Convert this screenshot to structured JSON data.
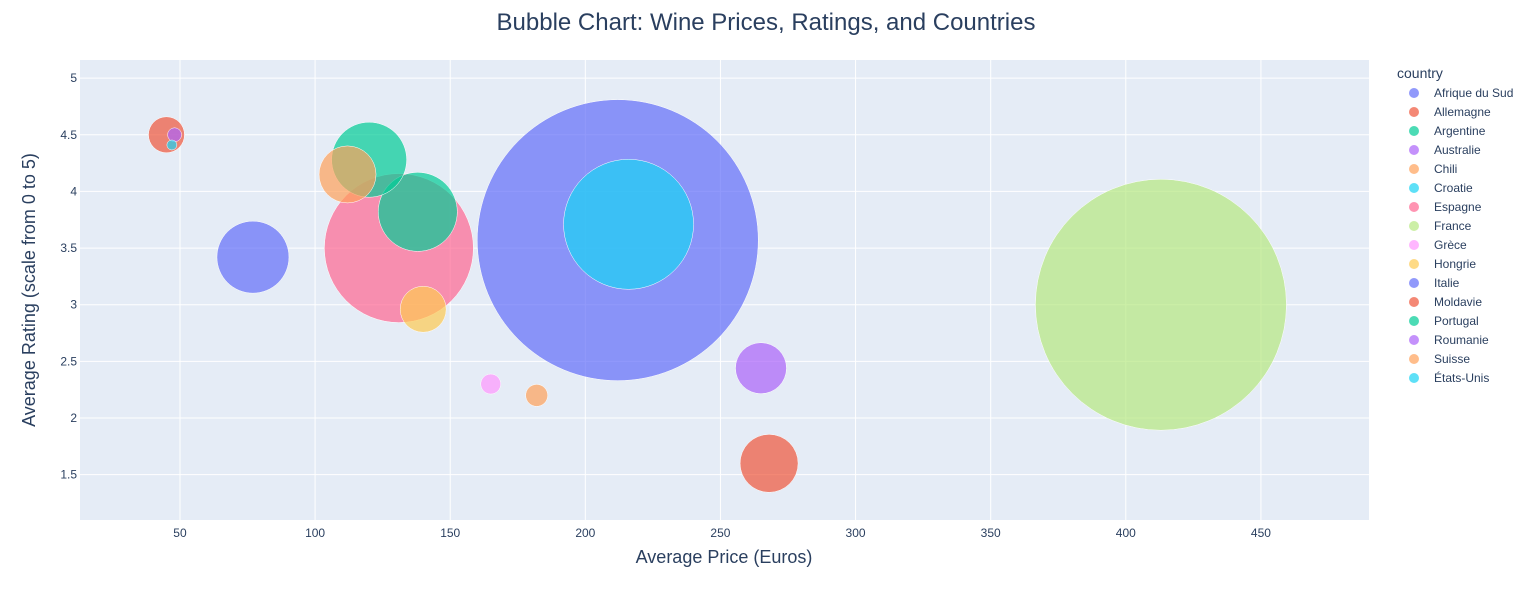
{
  "chart_data": {
    "type": "scatter",
    "title": "Bubble Chart: Wine Prices, Ratings, and Countries",
    "xlabel": "Average Price (Euros)",
    "ylabel": "Average Rating (scale from 0 to 5)",
    "xlim": [
      13,
      490
    ],
    "ylim": [
      1.1,
      5.16
    ],
    "x_ticks": [
      50,
      100,
      150,
      200,
      250,
      300,
      350,
      400,
      450
    ],
    "y_ticks": [
      1.5,
      2,
      2.5,
      3,
      3.5,
      4,
      4.5,
      5
    ],
    "grid": true,
    "legend_title": "country",
    "legend_position": "right",
    "series": [
      {
        "name": "Afrique du Sud",
        "color": "#636efa",
        "x": 77,
        "y": 3.42,
        "size": 72
      },
      {
        "name": "Allemagne",
        "color": "#EF553B",
        "x": 45,
        "y": 4.5,
        "size": 36
      },
      {
        "name": "Argentine",
        "color": "#00cc96",
        "x": 120,
        "y": 4.28,
        "size": 75
      },
      {
        "name": "Australie",
        "color": "#ab63fa",
        "x": 48,
        "y": 4.5,
        "size": 14
      },
      {
        "name": "Chili",
        "color": "#FFA15A",
        "x": 112,
        "y": 4.15,
        "size": 57
      },
      {
        "name": "Croatie",
        "color": "#19d3f3",
        "x": 47,
        "y": 4.41,
        "size": 10
      },
      {
        "name": "Espagne",
        "color": "#FF6692",
        "x": 131,
        "y": 3.5,
        "size": 149
      },
      {
        "name": "France",
        "color": "#B6E880",
        "x": 413,
        "y": 3.0,
        "size": 251
      },
      {
        "name": "Grèce",
        "color": "#FF97FF",
        "x": 165,
        "y": 2.3,
        "size": 20
      },
      {
        "name": "Hongrie",
        "color": "#FECB52",
        "x": 140,
        "y": 2.96,
        "size": 46
      },
      {
        "name": "Italie",
        "color": "#636efa",
        "x": 212,
        "y": 3.57,
        "size": 281
      },
      {
        "name": "Moldavie",
        "color": "#EF553B",
        "x": 268,
        "y": 1.6,
        "size": 58
      },
      {
        "name": "Portugal",
        "color": "#00cc96",
        "x": 138,
        "y": 3.82,
        "size": 79
      },
      {
        "name": "Roumanie",
        "color": "#ab63fa",
        "x": 265,
        "y": 2.44,
        "size": 51
      },
      {
        "name": "Suisse",
        "color": "#FFA15A",
        "x": 182,
        "y": 2.2,
        "size": 22
      },
      {
        "name": "États-Unis",
        "color": "#19d3f3",
        "x": 216,
        "y": 3.71,
        "size": 130
      }
    ]
  }
}
